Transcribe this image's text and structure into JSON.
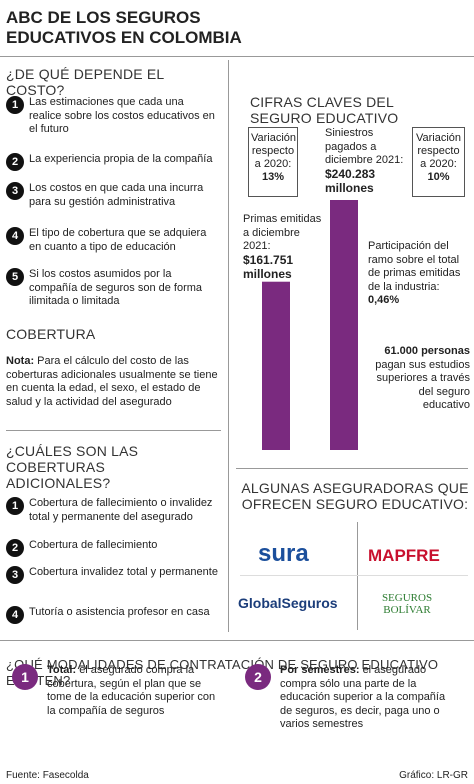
{
  "header": {
    "title": "ABC DE LOS SEGUROS EDUCATIVOS EN COLOMBIA"
  },
  "cost": {
    "heading": "¿DE QUÉ DEPENDE EL COSTO?",
    "items": [
      {
        "number": "1",
        "text": "Las estimaciones que cada una realice sobre los costos educativos en el futuro"
      },
      {
        "number": "2",
        "text": "La experiencia propia de la compañía"
      },
      {
        "number": "3",
        "text": "Los costos en que cada una incurra para su gestión administrativa"
      },
      {
        "number": "4",
        "text": "El tipo de cobertura que se adquiera en cuanto a tipo de educación"
      },
      {
        "number": "5",
        "text": "Si los costos asumidos por la compañía de seguros son de forma ilimitada o limitada"
      }
    ]
  },
  "coverage": {
    "heading": "COBERTURA",
    "note_label": "Nota:",
    "note": "Para el cálculo del costo de las coberturas adicionales usualmente se tiene en cuenta la edad, el sexo, el estado de salud y la actividad del asegurado"
  },
  "additional": {
    "heading": "¿CUÁLES SON LAS COBERTURAS ADICIONALES?",
    "items": [
      {
        "number": "1",
        "text": "Cobertura de fallecimiento o invalidez total y permanente del asegurado"
      },
      {
        "number": "2",
        "text": "Cobertura de fallecimiento"
      },
      {
        "number": "3",
        "text": "Cobertura invalidez total y permanente"
      },
      {
        "number": "4",
        "text": "Tutoría o asistencia profesor en casa"
      }
    ]
  },
  "key_figures": {
    "heading": "CIFRAS CLAVES DEL SEGURO EDUCATIVO",
    "variations": [
      {
        "text": "Variación respecto a 2020:",
        "value": "13%"
      },
      {
        "text": "Variación respecto a 2020:",
        "value": "10%"
      }
    ],
    "bars": {
      "labels": [
        "Primas emitidas a diciembre 2021:",
        "Siniestros pagados a diciembre 2021:"
      ],
      "values": [
        161751,
        240283
      ],
      "value_labels": [
        "$161.751 millones",
        "$240.283 millones"
      ],
      "color": "#7a2a7f"
    },
    "participation": {
      "text": "Participación del ramo sobre el total de primas emitidas de la industria:",
      "value": "0,46%"
    },
    "people": {
      "value": "61.000 personas",
      "text": "pagan sus estudios superiores a través del seguro educativo"
    }
  },
  "insurers": {
    "heading": "ALGUNAS ASEGURADORAS QUE OFRECEN SEGURO EDUCATIVO:",
    "logos": [
      "sura",
      "MAPFRE",
      "GlobalSeguros",
      "SEGUROS BOLÍVAR"
    ]
  },
  "modalities": {
    "heading": "¿QUÉ MODALIDADES DE CONTRATACIÓN DE SEGURO EDUCATIVO EXISTEN?",
    "items": [
      {
        "number": "1",
        "label": "Total:",
        "text": "el asegurado compra la cobertura, según el plan que se tome de la educación superior con la compañía de seguros"
      },
      {
        "number": "2",
        "label": "Por semestres:",
        "text": "el asegurado compra sólo una parte de la educación superior a la compañía de seguros, es decir, paga uno o varios semestres"
      }
    ]
  },
  "footer": {
    "source": "Fuente: Fasecolda",
    "credit": "Gráfico: LR-GR"
  }
}
